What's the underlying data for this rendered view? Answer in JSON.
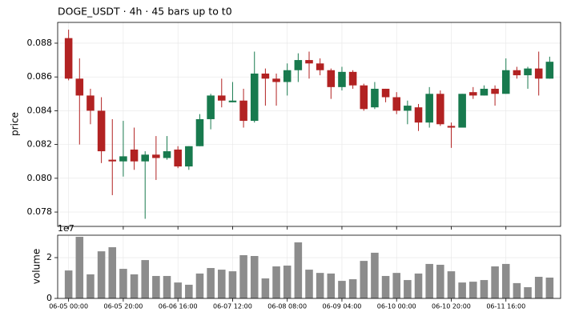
{
  "chart_data": {
    "type": "candlestick",
    "title": "DOGE_USDT  ·  4h  ·  45 bars up to t0",
    "ylabel": "price",
    "categories": [
      "06-05 00:00",
      null,
      null,
      null,
      null,
      "06-05 20:00",
      null,
      null,
      null,
      null,
      "06-06 16:00",
      null,
      null,
      null,
      null,
      "06-07 12:00",
      null,
      null,
      null,
      null,
      "06-08 08:00",
      null,
      null,
      null,
      null,
      "06-09 04:00",
      null,
      null,
      null,
      null,
      "06-10 00:00",
      null,
      null,
      null,
      null,
      "06-10 20:00",
      null,
      null,
      null,
      null,
      "06-11 16:00",
      null,
      null,
      null,
      null
    ],
    "open": [
      0.0883,
      0.0859,
      0.0849,
      0.084,
      0.0811,
      0.081,
      0.0817,
      0.081,
      0.0814,
      0.0812,
      0.0817,
      0.0807,
      0.0819,
      0.0835,
      0.0849,
      0.0845,
      0.0846,
      0.0834,
      0.0862,
      0.0859,
      0.0857,
      0.0864,
      0.087,
      0.0868,
      0.0864,
      0.0854,
      0.0863,
      0.0855,
      0.0842,
      0.0853,
      0.0848,
      0.084,
      0.0842,
      0.0833,
      0.085,
      0.0831,
      0.083,
      0.0851,
      0.0849,
      0.0853,
      0.085,
      0.0864,
      0.0861,
      0.0865,
      0.0859
    ],
    "high": [
      0.0888,
      0.0871,
      0.0853,
      0.0848,
      0.0835,
      0.0834,
      0.083,
      0.0816,
      0.0825,
      0.0825,
      0.0819,
      0.0819,
      0.0838,
      0.085,
      0.0859,
      0.0857,
      0.0853,
      0.0875,
      0.0865,
      0.0862,
      0.0868,
      0.0874,
      0.0875,
      0.0871,
      0.0865,
      0.0866,
      0.0864,
      0.0856,
      0.0857,
      0.0853,
      0.0851,
      0.0846,
      0.0844,
      0.0854,
      0.0852,
      0.0833,
      0.085,
      0.0854,
      0.0855,
      0.0855,
      0.0871,
      0.0866,
      0.0866,
      0.0875,
      0.0872
    ],
    "low": [
      0.0858,
      0.082,
      0.0832,
      0.0809,
      0.079,
      0.0801,
      0.0805,
      0.0776,
      0.0799,
      0.0811,
      0.0806,
      0.0805,
      0.0819,
      0.0829,
      0.0842,
      0.0845,
      0.083,
      0.0833,
      0.0843,
      0.0843,
      0.0849,
      0.0857,
      0.0859,
      0.0861,
      0.0847,
      0.0852,
      0.0853,
      0.084,
      0.0841,
      0.0845,
      0.0838,
      0.0832,
      0.0828,
      0.083,
      0.0831,
      0.0818,
      0.083,
      0.0847,
      0.0849,
      0.0843,
      0.085,
      0.0859,
      0.0853,
      0.0849,
      0.0859
    ],
    "close": [
      0.0859,
      0.0849,
      0.084,
      0.0816,
      0.081,
      0.0813,
      0.081,
      0.0814,
      0.0812,
      0.0816,
      0.0807,
      0.0819,
      0.0835,
      0.0849,
      0.0846,
      0.0846,
      0.0834,
      0.0862,
      0.0859,
      0.0857,
      0.0864,
      0.087,
      0.0868,
      0.0864,
      0.0854,
      0.0863,
      0.0855,
      0.0841,
      0.0853,
      0.0848,
      0.084,
      0.0843,
      0.0833,
      0.085,
      0.0832,
      0.083,
      0.085,
      0.0849,
      0.0853,
      0.085,
      0.0864,
      0.0861,
      0.0865,
      0.0859,
      0.0869
    ],
    "up_color": "#187a4e",
    "down_color": "#b22222",
    "ylim": [
      0.07715,
      0.08923
    ],
    "yticks": [
      0.078,
      {
        "value": 0.08,
        "label": "0.080"
      },
      0.082,
      0.084,
      0.086,
      0.088
    ],
    "grid": true,
    "volume": {
      "type": "bar",
      "ylabel": "volume",
      "offset_text": "1e7",
      "color": "#8c8c8c",
      "values": [
        13700000,
        30200000,
        11800000,
        23100000,
        25100000,
        14500000,
        11800000,
        18800000,
        11000000,
        11000000,
        7800000,
        6700000,
        12200000,
        14900000,
        14100000,
        13300000,
        21200000,
        20800000,
        9800000,
        15700000,
        16100000,
        27500000,
        14100000,
        12500000,
        12200000,
        8600000,
        9400000,
        18400000,
        22400000,
        11000000,
        12500000,
        9000000,
        12200000,
        16900000,
        16500000,
        13300000,
        7800000,
        8200000,
        9000000,
        15700000,
        16900000,
        7500000,
        5500000,
        10600000,
        10200000
      ],
      "ylim": [
        0,
        31000000
      ],
      "yticks": [
        0,
        {
          "value": 20000000,
          "label": "2"
        }
      ]
    }
  }
}
